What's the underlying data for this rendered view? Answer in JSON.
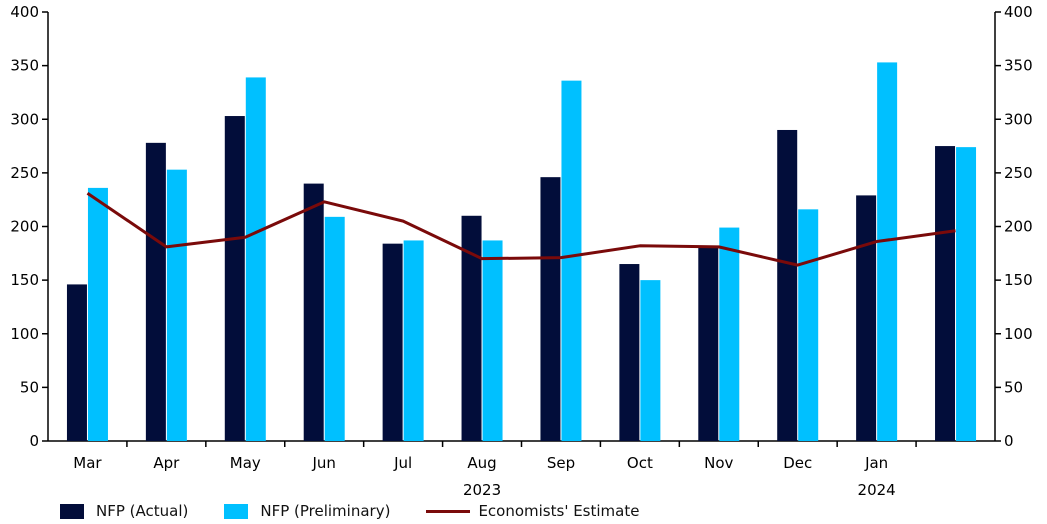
{
  "chart_data": {
    "type": "bar",
    "categories": [
      "Mar",
      "Apr",
      "May",
      "Jun",
      "Jul",
      "Aug",
      "Sep",
      "Oct",
      "Nov",
      "Dec",
      "Jan",
      ""
    ],
    "year_labels": [
      {
        "label": "2023",
        "under": "Aug"
      },
      {
        "label": "2024",
        "under": "Jan"
      }
    ],
    "series": [
      {
        "name": "NFP (Actual)",
        "kind": "bar",
        "color": "#020d3a",
        "values": [
          146,
          278,
          303,
          240,
          184,
          210,
          246,
          165,
          182,
          290,
          229,
          275
        ]
      },
      {
        "name": "NFP (Preliminary)",
        "kind": "bar",
        "color": "#00c0ff",
        "values": [
          236,
          253,
          339,
          209,
          187,
          187,
          336,
          150,
          199,
          216,
          353,
          274
        ]
      },
      {
        "name": "Economists' Estimate",
        "kind": "line",
        "color": "#7a0a0a",
        "values": [
          231,
          181,
          190,
          223,
          205,
          170,
          171,
          182,
          181,
          164,
          186,
          196
        ]
      }
    ],
    "ylim": [
      0,
      400
    ],
    "yticks": [
      0,
      50,
      100,
      150,
      200,
      250,
      300,
      350,
      400
    ],
    "y_axis_both_sides": true,
    "grid": false,
    "legend_position": "bottom",
    "xlabel": "",
    "ylabel": ""
  },
  "legend": {
    "actual": "NFP (Actual)",
    "preliminary": "NFP (Preliminary)",
    "estimate": "Economists' Estimate"
  }
}
